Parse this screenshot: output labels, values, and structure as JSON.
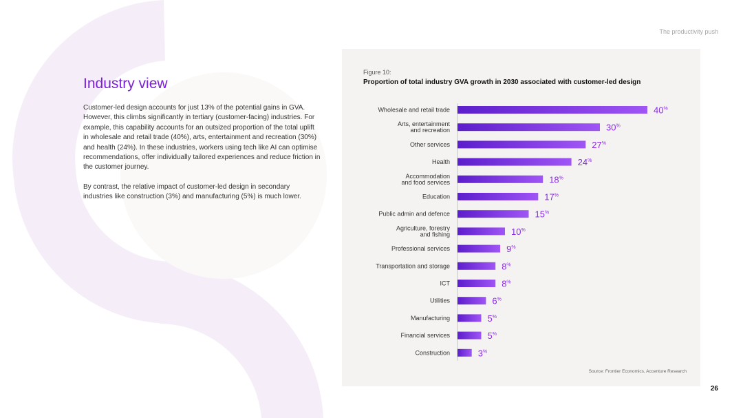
{
  "header": {
    "label": "The productivity push"
  },
  "section": {
    "title": "Industry view",
    "paragraphs": [
      "Customer-led design accounts for just 13% of the potential gains in GVA. However, this climbs significantly in tertiary (customer-facing) industries. For example, this capability accounts for an outsized proportion of the total uplift in wholesale and retail trade (40%), arts, entertainment and recreation (30%) and health (24%). In these industries, workers using tech like AI can optimise recommendations, offer individually tailored experiences and reduce friction in the customer journey.",
      "By contrast, the relative impact of customer-led design in secondary industries like construction (3%) and manufacturing (5%) is much lower."
    ]
  },
  "figure": {
    "label": "Figure 10:",
    "source": "Source: Frontier Economics, Accenture Research"
  },
  "chart_data": {
    "type": "bar",
    "orientation": "horizontal",
    "title": "Proportion of total industry GVA growth in 2030 associated with customer-led design",
    "categories": [
      [
        "Wholesale and retail trade"
      ],
      [
        "Arts, entertainment",
        "and recreation"
      ],
      [
        "Other services"
      ],
      [
        "Health"
      ],
      [
        "Accommodation",
        "and food services"
      ],
      [
        "Education"
      ],
      [
        "Public admin and defence"
      ],
      [
        "Agriculture, forestry",
        "and fishing"
      ],
      [
        "Professional services"
      ],
      [
        "Transportation and storage"
      ],
      [
        "ICT"
      ],
      [
        "Utilities"
      ],
      [
        "Manufacturing"
      ],
      [
        "Financial services"
      ],
      [
        "Construction"
      ]
    ],
    "values": [
      40,
      30,
      27,
      24,
      18,
      17,
      15,
      10,
      9,
      8,
      8,
      6,
      5,
      5,
      3
    ],
    "value_suffix": "%",
    "xlim": [
      0,
      40
    ],
    "xlabel": "",
    "ylabel": "",
    "colors": {
      "bar_start": "#5c1dcc",
      "bar_end": "#a055f5",
      "label": "#8a2be2"
    }
  },
  "page": {
    "number": "26"
  },
  "colors": {
    "accent": "#7c1fd6",
    "panel": "#f4f3f1",
    "decor": "#f5eef9"
  }
}
